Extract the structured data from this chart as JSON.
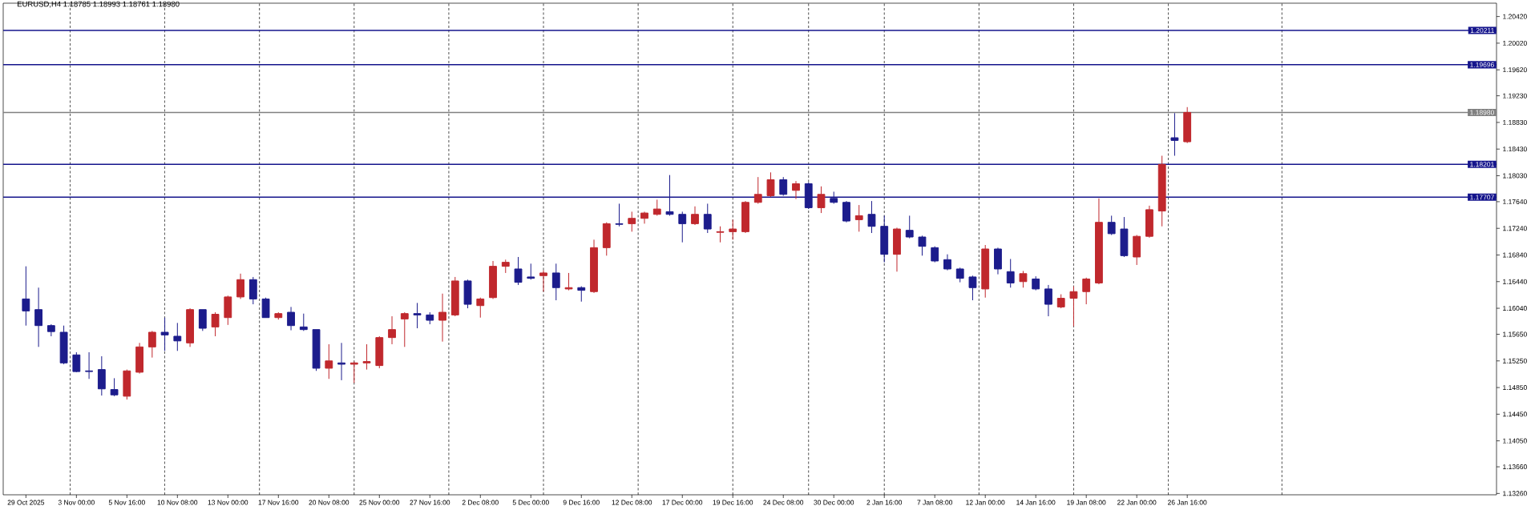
{
  "chart_data": {
    "type": "candlestick",
    "title": "EURUSD,H4 1.18785 1.18993 1.18761 1.18980",
    "grid": "x",
    "categories": [
      "29 Oct 2025",
      null,
      null,
      null,
      "3 Nov 00:00",
      null,
      null,
      null,
      "5 Nov 16:00",
      null,
      null,
      null,
      "10 Nov 08:00",
      null,
      null,
      null,
      "13 Nov 00:00",
      null,
      null,
      null,
      "17 Nov 16:00",
      null,
      null,
      null,
      "20 Nov 08:00",
      null,
      null,
      null,
      "25 Nov 00:00",
      null,
      null,
      null,
      "27 Nov 16:00",
      null,
      null,
      null,
      "2 Dec 08:00",
      null,
      null,
      null,
      "5 Dec 00:00",
      null,
      null,
      null,
      "9 Dec 16:00",
      null,
      null,
      null,
      "12 Dec 08:00",
      null,
      null,
      null,
      "17 Dec 00:00",
      null,
      null,
      null,
      "19 Dec 16:00",
      null,
      null,
      null,
      "24 Dec 08:00",
      null,
      null,
      null,
      "30 Dec 00:00",
      null,
      null,
      null,
      "2 Jan 16:00",
      null,
      null,
      null,
      "7 Jan 08:00",
      null,
      null,
      null,
      "12 Jan 00:00",
      null,
      null,
      null,
      "14 Jan 16:00",
      null,
      null,
      null,
      "19 Jan 08:00",
      null,
      null,
      null,
      "22 Jan 00:00",
      null,
      null,
      null,
      "26 Jan 16:00",
      null,
      null,
      null,
      null,
      null,
      null,
      null,
      null,
      null,
      null,
      null,
      null,
      null,
      null,
      null,
      null,
      null,
      null,
      null,
      null,
      null,
      null,
      null,
      null
    ],
    "ohlc": [
      [
        1.1618,
        1.1667,
        1.1578,
        1.16
      ],
      [
        1.1602,
        1.1635,
        1.1546,
        1.1578
      ],
      [
        1.1578,
        1.158,
        1.1562,
        1.1569
      ],
      [
        1.1568,
        1.1578,
        1.152,
        1.1522
      ],
      [
        1.1534,
        1.1538,
        1.1508,
        1.1509
      ],
      [
        1.151,
        1.1538,
        1.1498,
        1.1509
      ],
      [
        1.1512,
        1.1532,
        1.1473,
        1.1483
      ],
      [
        1.1482,
        1.1499,
        1.1472,
        1.1474
      ],
      [
        1.1472,
        1.1512,
        1.1467,
        1.151
      ],
      [
        1.1508,
        1.1552,
        1.1506,
        1.1546
      ],
      [
        1.1546,
        1.157,
        1.153,
        1.1568
      ],
      [
        1.1568,
        1.159,
        1.154,
        1.1564
      ],
      [
        1.1562,
        1.1582,
        1.154,
        1.1555
      ],
      [
        1.1552,
        1.1604,
        1.1546,
        1.1602
      ],
      [
        1.1602,
        1.1602,
        1.157,
        1.1574
      ],
      [
        1.1576,
        1.1598,
        1.1562,
        1.1595
      ],
      [
        1.159,
        1.1623,
        1.1579,
        1.1621
      ],
      [
        1.1621,
        1.1656,
        1.1618,
        1.1647
      ],
      [
        1.1647,
        1.1651,
        1.161,
        1.1618
      ],
      [
        1.1618,
        1.162,
        1.159,
        1.159
      ],
      [
        1.159,
        1.1598,
        1.1587,
        1.1596
      ],
      [
        1.1598,
        1.1606,
        1.1571,
        1.1578
      ],
      [
        1.1576,
        1.1596,
        1.157,
        1.1572
      ],
      [
        1.1572,
        1.1572,
        1.151,
        1.1514
      ],
      [
        1.1514,
        1.155,
        1.1498,
        1.1525
      ],
      [
        1.1522,
        1.1552,
        1.1496,
        1.152
      ],
      [
        1.152,
        1.1524,
        1.1492,
        1.1522
      ],
      [
        1.1522,
        1.155,
        1.1512,
        1.1524
      ],
      [
        1.1518,
        1.1562,
        1.1514,
        1.156
      ],
      [
        1.156,
        1.1592,
        1.155,
        1.1572
      ],
      [
        1.1588,
        1.1598,
        1.1546,
        1.1596
      ],
      [
        1.1596,
        1.1612,
        1.1574,
        1.1594
      ],
      [
        1.1594,
        1.1598,
        1.158,
        1.1586
      ],
      [
        1.1586,
        1.1626,
        1.1554,
        1.1598
      ],
      [
        1.1594,
        1.1651,
        1.1592,
        1.1645
      ],
      [
        1.1645,
        1.1647,
        1.1604,
        1.161
      ],
      [
        1.1608,
        1.162,
        1.159,
        1.1618
      ],
      [
        1.162,
        1.1675,
        1.1618,
        1.1667
      ],
      [
        1.1667,
        1.1677,
        1.1657,
        1.1673
      ],
      [
        1.1663,
        1.1681,
        1.1639,
        1.1643
      ],
      [
        1.1651,
        1.1671,
        1.1647,
        1.1649
      ],
      [
        1.1653,
        1.1661,
        1.1629,
        1.1657
      ],
      [
        1.1657,
        1.1671,
        1.1616,
        1.1635
      ],
      [
        1.1633,
        1.1657,
        1.1631,
        1.1635
      ],
      [
        1.1635,
        1.1637,
        1.1614,
        1.1631
      ],
      [
        1.1629,
        1.1707,
        1.1627,
        1.1695
      ],
      [
        1.1695,
        1.1733,
        1.1683,
        1.1731
      ],
      [
        1.1731,
        1.1761,
        1.1727,
        1.173
      ],
      [
        1.1731,
        1.1749,
        1.1719,
        1.1739
      ],
      [
        1.1739,
        1.1749,
        1.1731,
        1.1747
      ],
      [
        1.1745,
        1.1767,
        1.1743,
        1.1753
      ],
      [
        1.1749,
        1.1804,
        1.1743,
        1.1745
      ],
      [
        1.1745,
        1.1749,
        1.1703,
        1.1731
      ],
      [
        1.1731,
        1.1757,
        1.1729,
        1.1745
      ],
      [
        1.1745,
        1.1761,
        1.1717,
        1.1723
      ],
      [
        1.1718,
        1.1727,
        1.1703,
        1.1719
      ],
      [
        1.1719,
        1.1737,
        1.1707,
        1.1723
      ],
      [
        1.1719,
        1.1765,
        1.1717,
        1.1763
      ],
      [
        1.1763,
        1.1801,
        1.1761,
        1.1775
      ],
      [
        1.1773,
        1.1808,
        1.1771,
        1.1797
      ],
      [
        1.1797,
        1.1801,
        1.1773,
        1.1775
      ],
      [
        1.1781,
        1.1795,
        1.1768,
        1.1791
      ],
      [
        1.1791,
        1.1793,
        1.1753,
        1.1755
      ],
      [
        1.1755,
        1.1787,
        1.1747,
        1.1775
      ],
      [
        1.1769,
        1.1779,
        1.1761,
        1.1763
      ],
      [
        1.1763,
        1.1765,
        1.1733,
        1.1735
      ],
      [
        1.1737,
        1.1759,
        1.1719,
        1.1743
      ],
      [
        1.1745,
        1.1765,
        1.1717,
        1.1727
      ],
      [
        1.1727,
        1.1743,
        1.1673,
        1.1685
      ],
      [
        1.1685,
        1.1725,
        1.1659,
        1.1723
      ],
      [
        1.1721,
        1.1743,
        1.1709,
        1.1711
      ],
      [
        1.1711,
        1.1713,
        1.1683,
        1.1697
      ],
      [
        1.1695,
        1.1697,
        1.1673,
        1.1675
      ],
      [
        1.1677,
        1.1685,
        1.1661,
        1.1663
      ],
      [
        1.1663,
        1.1665,
        1.1643,
        1.1649
      ],
      [
        1.1651,
        1.1653,
        1.1616,
        1.1635
      ],
      [
        1.1633,
        1.1699,
        1.162,
        1.1693
      ],
      [
        1.1693,
        1.1695,
        1.1655,
        1.1663
      ],
      [
        1.1659,
        1.1678,
        1.1635,
        1.1642
      ],
      [
        1.1644,
        1.166,
        1.1635,
        1.1656
      ],
      [
        1.1648,
        1.1652,
        1.1631,
        1.1633
      ],
      [
        1.1633,
        1.1639,
        1.1592,
        1.161
      ],
      [
        1.1606,
        1.1625,
        1.1604,
        1.1619
      ],
      [
        1.1619,
        1.1637,
        1.1577,
        1.1629
      ],
      [
        1.1629,
        1.165,
        1.161,
        1.1648
      ],
      [
        1.1642,
        1.1769,
        1.164,
        1.1733
      ],
      [
        1.1733,
        1.1743,
        1.1714,
        1.1716
      ],
      [
        1.1723,
        1.1741,
        1.1681,
        1.1683
      ],
      [
        1.1681,
        1.1714,
        1.1669,
        1.1712
      ],
      [
        1.1712,
        1.1758,
        1.171,
        1.1752
      ],
      [
        1.175,
        1.1833,
        1.1727,
        1.182
      ],
      [
        1.186,
        1.1897,
        1.1833,
        1.1856
      ],
      [
        1.1854,
        1.1906,
        1.1852,
        1.1898
      ],
      null,
      null,
      null,
      null,
      null,
      null,
      null,
      null,
      null,
      null,
      null,
      null,
      null,
      null,
      null,
      null,
      null,
      null,
      null,
      null,
      null,
      null,
      null,
      null
    ],
    "colors": [
      "#1c1c8c",
      "#1c1c8c",
      "#1c1c8c",
      "#1c1c8c",
      "#1c1c8c",
      "#1c1c8c",
      "#1c1c8c",
      "#1c1c8c",
      "#c0282d",
      "#c0282d",
      "#c0282d",
      "#1c1c8c",
      "#1c1c8c",
      "#c0282d",
      "#1c1c8c",
      "#c0282d",
      "#c0282d",
      "#c0282d",
      "#1c1c8c",
      "#1c1c8c",
      "#c0282d",
      "#1c1c8c",
      "#1c1c8c",
      "#1c1c8c",
      "#c0282d",
      "#1c1c8c",
      "#c0282d",
      "#c0282d",
      "#c0282d",
      "#c0282d",
      "#c0282d",
      "#1c1c8c",
      "#1c1c8c",
      "#c0282d",
      "#c0282d",
      "#1c1c8c",
      "#c0282d",
      "#c0282d",
      "#c0282d",
      "#1c1c8c",
      "#1c1c8c",
      "#c0282d",
      "#1c1c8c",
      "#c0282d",
      "#1c1c8c",
      "#c0282d",
      "#c0282d",
      "#1c1c8c",
      "#c0282d",
      "#c0282d",
      "#c0282d",
      "#1c1c8c",
      "#1c1c8c",
      "#c0282d",
      "#1c1c8c",
      "#c0282d",
      "#c0282d",
      "#c0282d",
      "#c0282d",
      "#c0282d",
      "#1c1c8c",
      "#c0282d",
      "#1c1c8c",
      "#c0282d",
      "#1c1c8c",
      "#1c1c8c",
      "#c0282d",
      "#1c1c8c",
      "#1c1c8c",
      "#c0282d",
      "#1c1c8c",
      "#1c1c8c",
      "#1c1c8c",
      "#1c1c8c",
      "#1c1c8c",
      "#1c1c8c",
      "#c0282d",
      "#1c1c8c",
      "#1c1c8c",
      "#c0282d",
      "#1c1c8c",
      "#1c1c8c",
      "#c0282d",
      "#c0282d",
      "#c0282d",
      "#c0282d",
      "#1c1c8c",
      "#1c1c8c",
      "#c0282d",
      "#c0282d",
      "#c0282d",
      "#1c1c8c",
      "#c0282d",
      null,
      null,
      null,
      null,
      null,
      null,
      null,
      null,
      null,
      null,
      null,
      null,
      null,
      null,
      null,
      null,
      null,
      null,
      null,
      null,
      null,
      null,
      null,
      null
    ],
    "ylim": [
      1.1324,
      1.2062
    ],
    "yticks": [
      {
        "value": 1.2042,
        "label": "1.20420"
      },
      {
        "value": 1.2002,
        "label": "1.20020"
      },
      {
        "value": 1.1962,
        "label": "1.19620"
      },
      {
        "value": 1.1923,
        "label": "1.19230"
      },
      {
        "value": 1.1883,
        "label": "1.18830"
      },
      {
        "value": 1.1843,
        "label": "1.18430"
      },
      {
        "value": 1.1803,
        "label": "1.18030"
      },
      {
        "value": 1.1764,
        "label": "1.17640"
      },
      {
        "value": 1.1724,
        "label": "1.17240"
      },
      {
        "value": 1.1684,
        "label": "1.16840"
      },
      {
        "value": 1.1644,
        "label": "1.16440"
      },
      {
        "value": 1.1604,
        "label": "1.16040"
      },
      {
        "value": 1.1565,
        "label": "1.15650"
      },
      {
        "value": 1.1525,
        "label": "1.15250"
      },
      {
        "value": 1.1485,
        "label": "1.14850"
      },
      {
        "value": 1.1445,
        "label": "1.14450"
      },
      {
        "value": 1.1405,
        "label": "1.14050"
      },
      {
        "value": 1.1366,
        "label": "1.13660"
      },
      {
        "value": 1.1326,
        "label": "1.13260"
      }
    ],
    "ref_lines": [
      {
        "axis": "y",
        "value": 1.20211,
        "label": "1.20211",
        "color": "#14148c"
      },
      {
        "axis": "y",
        "value": 1.19696,
        "label": "1.19696",
        "color": "#14148c"
      },
      {
        "axis": "y",
        "value": 1.1898,
        "label": "1.18980",
        "color": "#808080"
      },
      {
        "axis": "y",
        "value": 1.18201,
        "label": "1.18201",
        "color": "#14148c"
      },
      {
        "axis": "y",
        "value": 1.17707,
        "label": "1.17707",
        "color": "#14148c"
      }
    ]
  }
}
